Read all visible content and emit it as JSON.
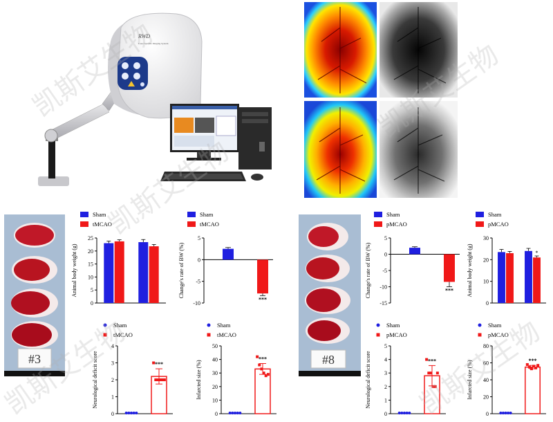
{
  "device": {
    "brand_label": "RWD",
    "model_label": "Laser Speckle Imaging System"
  },
  "watermark": {
    "text": "凯斯艾生物"
  },
  "legends": {
    "sham": "Sham",
    "tmcao": "tMCAO",
    "pmcao": "pMCAO"
  },
  "slice_labels": {
    "left": "#3",
    "right": "#8"
  },
  "colors": {
    "sham": "#1f1fe0",
    "model": "#f01818"
  },
  "chart_data": [
    {
      "id": "t-body-weight",
      "type": "bar",
      "legend": [
        "Sham",
        "tMCAO"
      ],
      "ylabel": "Animal body weight (g)",
      "ylim": [
        0,
        25
      ],
      "yticks": [
        "0",
        "5",
        "10",
        "15",
        "20",
        "25"
      ],
      "groups": [
        {
          "series": "Sham",
          "values": [
            23.0,
            23.4
          ],
          "errors": [
            0.8,
            1.0
          ]
        },
        {
          "series": "tMCAO",
          "values": [
            23.7,
            21.8
          ],
          "errors": [
            0.6,
            0.7
          ]
        }
      ],
      "significance": []
    },
    {
      "id": "t-bw-change",
      "type": "bar",
      "legend": [
        "Sham",
        "tMCAO"
      ],
      "ylabel": "Change's rate of BW (%)",
      "ylim": [
        -10,
        5
      ],
      "yticks": [
        "5",
        "0",
        "-5",
        "-10"
      ],
      "bars": [
        {
          "series": "Sham",
          "value": 2.5,
          "error": 0.3
        },
        {
          "series": "tMCAO",
          "value": -7.8,
          "error": 0.5
        }
      ],
      "significance": "***"
    },
    {
      "id": "t-neuro-score",
      "type": "scatter",
      "legend": [
        "Sham",
        "tMCAO"
      ],
      "ylabel": "Neurological deficit score",
      "ylim": [
        0,
        4
      ],
      "yticks": [
        "0",
        "1",
        "2",
        "3",
        "4"
      ],
      "groups": [
        {
          "series": "Sham",
          "mean": 0,
          "error": 0,
          "points": [
            0,
            0,
            0,
            0,
            0
          ]
        },
        {
          "series": "tMCAO",
          "mean": 2.2,
          "error": 0.45,
          "points": [
            3,
            2,
            2,
            2,
            2,
            2
          ]
        }
      ],
      "significance": "***"
    },
    {
      "id": "t-infarct",
      "type": "scatter",
      "legend": [
        "Sham",
        "tMCAO"
      ],
      "ylabel": "Infarcted size (%)",
      "ylim": [
        0,
        50
      ],
      "yticks": [
        "0",
        "10",
        "20",
        "30",
        "40",
        "50"
      ],
      "groups": [
        {
          "series": "Sham",
          "mean": 0,
          "error": 0,
          "points": [
            0,
            0,
            0,
            0,
            0
          ]
        },
        {
          "series": "tMCAO",
          "mean": 33,
          "error": 4,
          "points": [
            42,
            36,
            33,
            30,
            28,
            29
          ]
        }
      ],
      "significance": "***"
    },
    {
      "id": "p-bw-change",
      "type": "bar",
      "legend": [
        "Sham",
        "pMCAO"
      ],
      "ylabel": "Change's rate of BW (%)",
      "ylim": [
        -15,
        5
      ],
      "yticks": [
        "5",
        "0",
        "-5",
        "-10",
        "-15"
      ],
      "bars": [
        {
          "series": "Sham",
          "value": 2.0,
          "error": 0.3
        },
        {
          "series": "pMCAO",
          "value": -8.5,
          "error": 1.5
        }
      ],
      "significance": "***"
    },
    {
      "id": "p-body-weight",
      "type": "bar",
      "legend": [
        "Sham",
        "pMCAO"
      ],
      "ylabel": "Animal body weight (g)",
      "ylim": [
        0,
        30
      ],
      "yticks": [
        "0",
        "10",
        "20",
        "30"
      ],
      "groups": [
        {
          "series": "Sham",
          "values": [
            23.5,
            24.0
          ],
          "errors": [
            1.2,
            1.2
          ]
        },
        {
          "series": "pMCAO",
          "values": [
            23.0,
            21.0
          ],
          "errors": [
            0.8,
            0.7
          ]
        }
      ],
      "significance": [
        {
          "index": 1,
          "label": "*"
        }
      ]
    },
    {
      "id": "p-neuro-score",
      "type": "scatter",
      "legend": [
        "Sham",
        "pMCAO"
      ],
      "ylabel": "Neurological deficit score",
      "ylim": [
        0,
        5
      ],
      "yticks": [
        "0",
        "1",
        "2",
        "3",
        "4",
        "5"
      ],
      "groups": [
        {
          "series": "Sham",
          "mean": 0,
          "error": 0,
          "points": [
            0,
            0,
            0,
            0,
            0
          ]
        },
        {
          "series": "pMCAO",
          "mean": 2.8,
          "error": 0.75,
          "points": [
            4,
            3,
            3,
            2,
            2,
            3
          ]
        }
      ],
      "significance": "***"
    },
    {
      "id": "p-infarct",
      "type": "scatter",
      "legend": [
        "Sham",
        "pMCAO"
      ],
      "ylabel": "Infarcted size (%)",
      "ylim": [
        0,
        80
      ],
      "yticks": [
        "0",
        "20",
        "40",
        "60",
        "80"
      ],
      "groups": [
        {
          "series": "Sham",
          "mean": 0,
          "error": 0,
          "points": [
            0,
            0,
            0,
            0,
            0
          ]
        },
        {
          "series": "pMCAO",
          "mean": 55,
          "error": 2,
          "points": [
            58,
            55,
            53,
            56,
            54,
            57
          ]
        }
      ],
      "significance": "***"
    }
  ]
}
